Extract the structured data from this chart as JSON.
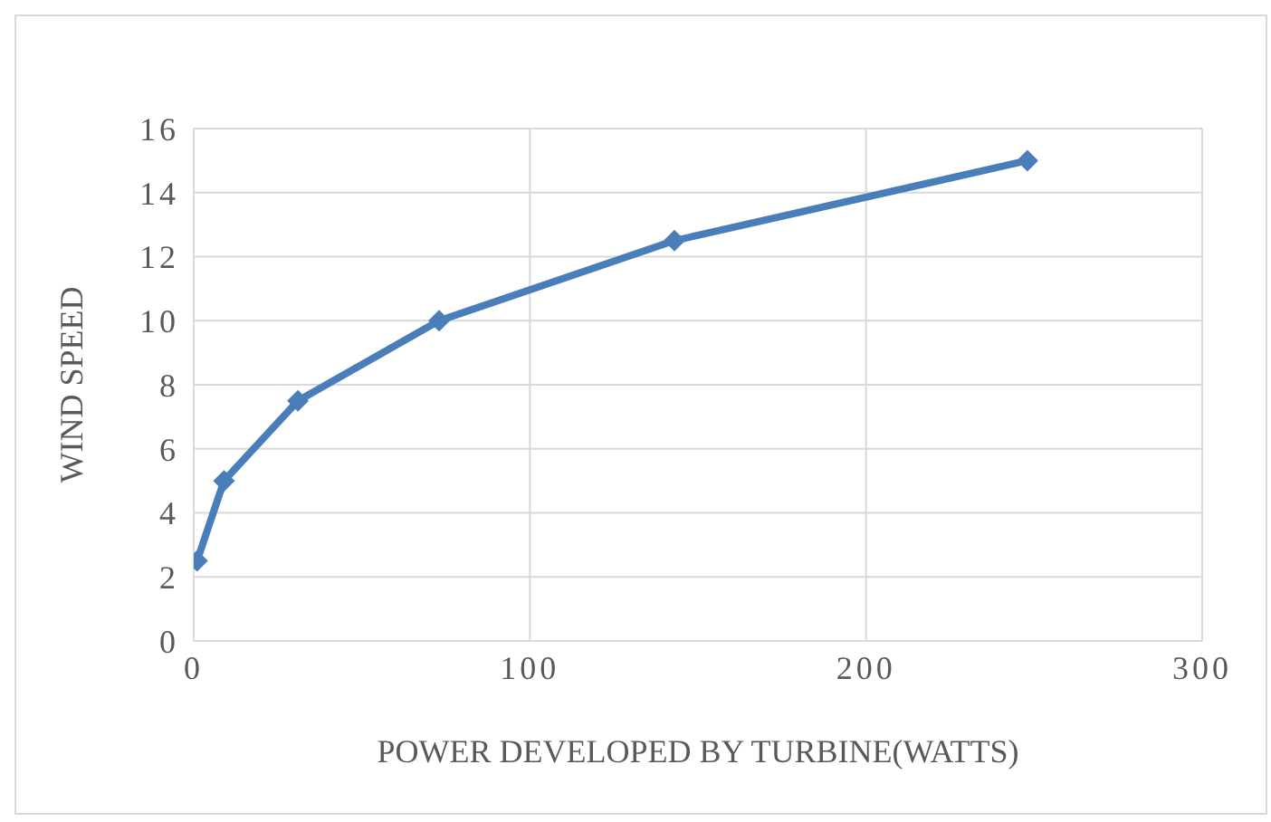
{
  "chart_data": {
    "type": "line",
    "xlabel": "POWER DEVELOPED BY TURBINE(WATTS)",
    "ylabel": "WIND SPEED",
    "x": [
      1,
      9,
      31,
      73,
      143,
      248
    ],
    "series": [
      {
        "color": "#4a7ebb",
        "values": [
          2.5,
          5,
          7.5,
          10,
          12.5,
          15
        ]
      }
    ],
    "xlim": [
      0,
      300
    ],
    "xticks": [
      0,
      100,
      200,
      300
    ],
    "ylim": [
      0,
      16
    ],
    "yticks": [
      0,
      2,
      4,
      6,
      8,
      10,
      12,
      14,
      16
    ],
    "grid": true,
    "legend": false,
    "marker": "diamond",
    "line_style": "solid"
  }
}
